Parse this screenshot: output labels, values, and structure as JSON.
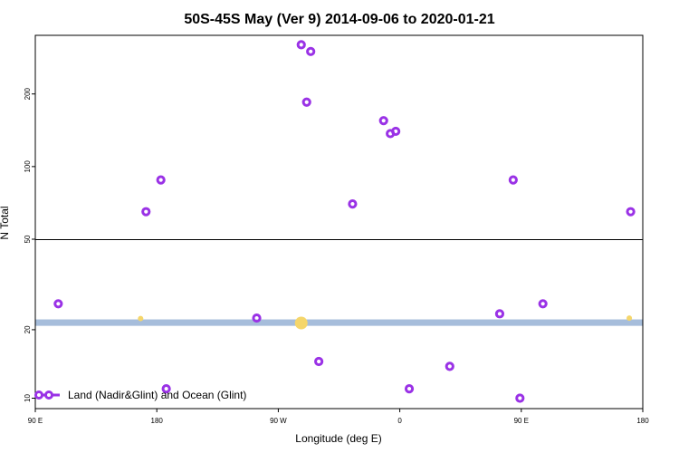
{
  "chart_data": {
    "type": "scatter",
    "title": "50S-45S May (Ver 9)   2014-09-06 to 2020-01-21",
    "xlabel": "Longitude (deg E)",
    "ylabel": "N Total",
    "x_ticks": [
      {
        "label": "90 E",
        "lon": 90
      },
      {
        "label": "180",
        "lon": 180
      },
      {
        "label": "90 W",
        "lon": 270
      },
      {
        "label": "0",
        "lon": 360
      },
      {
        "label": "90 E",
        "lon": 450
      },
      {
        "label": "180",
        "lon": 540
      }
    ],
    "xlim": [
      90,
      540
    ],
    "upper_panel": {
      "yscale": "log",
      "ylim": [
        50,
        350
      ],
      "y_ticks": [
        "50",
        "100",
        "200"
      ]
    },
    "lower_panel": {
      "yscale": "log",
      "ylim": [
        9,
        50
      ],
      "y_ticks": [
        "10",
        "20"
      ]
    },
    "band": {
      "y_low": 20.8,
      "y_high": 22.2,
      "color": "#a6bddb"
    },
    "series": [
      {
        "name": "Land (Nadir&Glint) and Ocean (Glint)",
        "color": "#9a32e6",
        "points": [
          {
            "lon": 107,
            "y": 26
          },
          {
            "lon": 172,
            "y": 65
          },
          {
            "lon": 183,
            "y": 88
          },
          {
            "lon": 187,
            "y": 11
          },
          {
            "lon": 254,
            "y": 22.5
          },
          {
            "lon": 287,
            "y": 320
          },
          {
            "lon": 291,
            "y": 185
          },
          {
            "lon": 294,
            "y": 300
          },
          {
            "lon": 300,
            "y": 14.5
          },
          {
            "lon": 325,
            "y": 70
          },
          {
            "lon": 348,
            "y": 155
          },
          {
            "lon": 353,
            "y": 137
          },
          {
            "lon": 357,
            "y": 140
          },
          {
            "lon": 367,
            "y": 11
          },
          {
            "lon": 397,
            "y": 13.8
          },
          {
            "lon": 434,
            "y": 23.5
          },
          {
            "lon": 444,
            "y": 88
          },
          {
            "lon": 449,
            "y": 10
          },
          {
            "lon": 466,
            "y": 26
          },
          {
            "lon": 531,
            "y": 65
          }
        ]
      },
      {
        "name": "",
        "color": "#f5d66b",
        "points": [
          {
            "lon": 168,
            "y": 22.4,
            "size": 3
          },
          {
            "lon": 287,
            "y": 21.4,
            "size": 7
          },
          {
            "lon": 530,
            "y": 22.5,
            "size": 3
          }
        ]
      }
    ],
    "legend": {
      "placement": "bottom-left"
    }
  }
}
